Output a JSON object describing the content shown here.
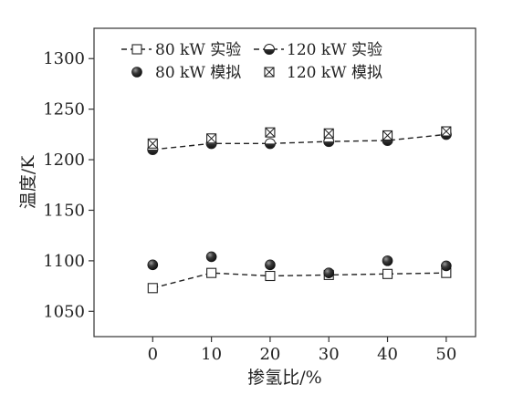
{
  "chart_data": {
    "type": "scatter",
    "xlabel": "掺氢比/%",
    "ylabel": "温度/K",
    "x": [
      0,
      10,
      20,
      30,
      40,
      50
    ],
    "xlim": [
      -10,
      55
    ],
    "ylim": [
      1025,
      1330
    ],
    "x_ticks": [
      0,
      10,
      20,
      30,
      40,
      50
    ],
    "y_ticks": [
      1050,
      1100,
      1150,
      1200,
      1250,
      1300
    ],
    "grid": false,
    "legend_position": "top",
    "series": [
      {
        "name": "80 kW 实验",
        "marker": "open-square",
        "line": "dashed",
        "values": [
          1073,
          1088,
          1085,
          1086,
          1087,
          1088
        ]
      },
      {
        "name": "120 kW 实验",
        "marker": "half-filled-circle",
        "line": "dashed",
        "values": [
          1210,
          1216,
          1216,
          1218,
          1219,
          1225
        ]
      },
      {
        "name": "80 kW 模拟",
        "marker": "filled-circle",
        "line": "none",
        "values": [
          1096,
          1104,
          1096,
          1088,
          1100,
          1095
        ]
      },
      {
        "name": "120 kW 模拟",
        "marker": "boxed-x",
        "line": "none",
        "values": [
          1216,
          1221,
          1227,
          1226,
          1224,
          1228
        ]
      }
    ]
  }
}
